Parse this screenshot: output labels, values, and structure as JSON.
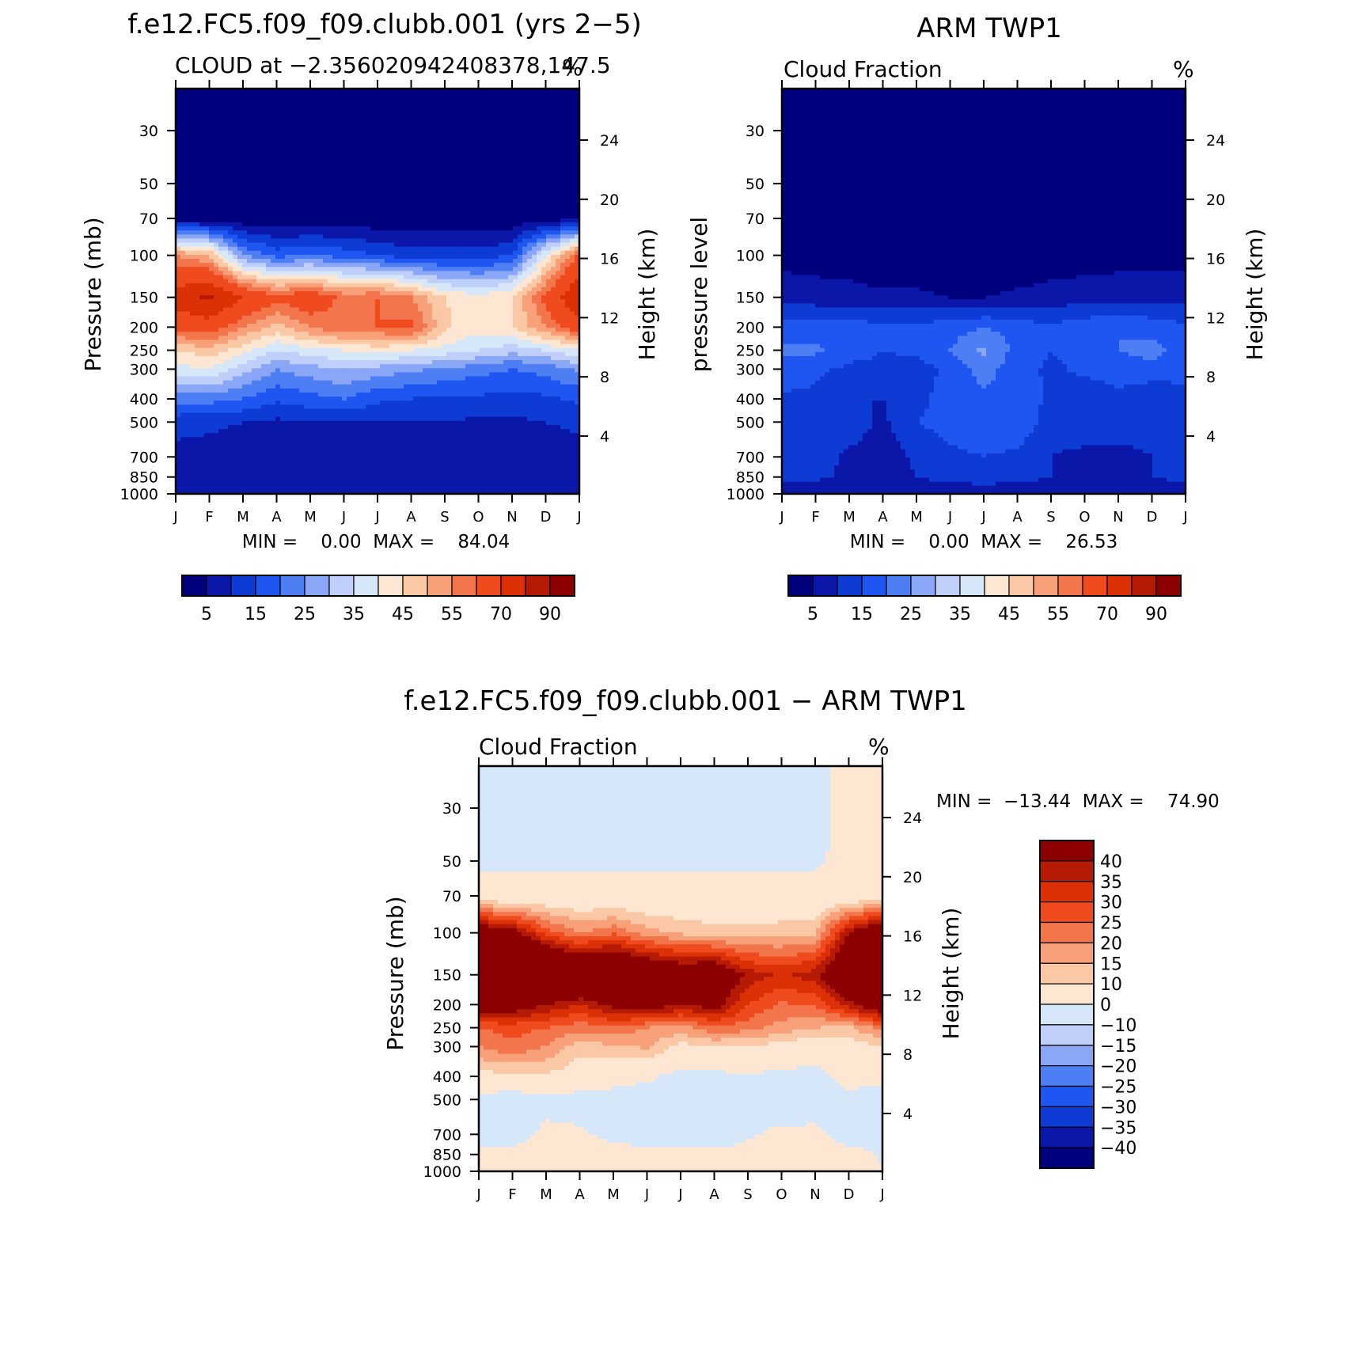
{
  "chart_data": [
    {
      "type": "heatmap",
      "title": "f.e12.FC5.f09_f09.clubb.001 (yrs 2−5)",
      "subtitle_left": "CLOUD at −2.356020942408378,147.5",
      "subtitle_right": "%",
      "ylabel": "Pressure (mb)",
      "y2label": "Height (km)",
      "x_ticks": [
        "J",
        "F",
        "M",
        "A",
        "M",
        "J",
        "J",
        "A",
        "S",
        "O",
        "N",
        "D",
        "J"
      ],
      "y_ticks": [
        "30",
        "50",
        "70",
        "100",
        "150",
        "200",
        "250",
        "300",
        "400",
        "500",
        "700",
        "850",
        "1000"
      ],
      "y2_ticks": [
        "24",
        "20",
        "16",
        "12",
        "8",
        "4"
      ],
      "minmax": "MIN =    0.00  MAX =    84.04",
      "min": 0.0,
      "max": 84.04,
      "colorbar_labels": [
        "5",
        "15",
        "25",
        "35",
        "45",
        "55",
        "70",
        "90"
      ],
      "colors": [
        "#00007f",
        "#0a17a8",
        "#0d3bd4",
        "#1f55f0",
        "#4d7ef4",
        "#8aa6f7",
        "#bfcff9",
        "#d7e7fa",
        "#fde7d3",
        "#fbc8a6",
        "#f7a07a",
        "#f3754c",
        "#ef4b1f",
        "#dc3007",
        "#b41a04",
        "#8c0000"
      ],
      "profile": [
        {
          "p": 30,
          "v": [
            0,
            0,
            0,
            0,
            0,
            0,
            0,
            0,
            0,
            0,
            0,
            0,
            0
          ]
        },
        {
          "p": 50,
          "v": [
            0,
            0,
            0,
            0,
            0,
            0,
            0,
            0,
            0,
            0,
            0,
            0,
            0
          ]
        },
        {
          "p": 70,
          "v": [
            2,
            2,
            1,
            1,
            1,
            1,
            1,
            1,
            1,
            1,
            1,
            2,
            3
          ]
        },
        {
          "p": 100,
          "v": [
            55,
            50,
            25,
            18,
            20,
            18,
            15,
            12,
            12,
            12,
            15,
            40,
            62
          ]
        },
        {
          "p": 150,
          "v": [
            75,
            82,
            70,
            62,
            66,
            58,
            60,
            55,
            45,
            42,
            45,
            62,
            80
          ]
        },
        {
          "p": 200,
          "v": [
            62,
            65,
            55,
            48,
            55,
            60,
            60,
            62,
            46,
            42,
            45,
            55,
            65
          ]
        },
        {
          "p": 250,
          "v": [
            45,
            48,
            42,
            35,
            38,
            40,
            42,
            40,
            38,
            35,
            32,
            35,
            40
          ]
        },
        {
          "p": 300,
          "v": [
            38,
            40,
            32,
            25,
            28,
            30,
            28,
            26,
            24,
            22,
            20,
            22,
            26
          ]
        },
        {
          "p": 400,
          "v": [
            22,
            22,
            20,
            16,
            18,
            20,
            16,
            15,
            14,
            14,
            13,
            14,
            16
          ]
        },
        {
          "p": 500,
          "v": [
            12,
            11,
            10,
            9,
            10,
            10,
            10,
            10,
            10,
            9,
            9,
            10,
            11
          ]
        },
        {
          "p": 700,
          "v": [
            8,
            8,
            7,
            6,
            7,
            8,
            8,
            8,
            7,
            6,
            6,
            7,
            8
          ]
        },
        {
          "p": 850,
          "v": [
            8,
            9,
            9,
            8,
            9,
            9,
            10,
            10,
            9,
            8,
            8,
            9,
            9
          ]
        },
        {
          "p": 1000,
          "v": [
            5,
            5,
            5,
            5,
            5,
            5,
            5,
            5,
            5,
            5,
            5,
            5,
            5
          ]
        }
      ]
    },
    {
      "type": "heatmap",
      "title": "ARM TWP1",
      "subtitle_left": "Cloud Fraction",
      "subtitle_right": "%",
      "ylabel": "pressure level",
      "y2label": "Height (km)",
      "x_ticks": [
        "J",
        "F",
        "M",
        "A",
        "M",
        "J",
        "J",
        "A",
        "S",
        "O",
        "N",
        "D",
        "J"
      ],
      "y_ticks": [
        "30",
        "50",
        "70",
        "100",
        "150",
        "200",
        "250",
        "300",
        "400",
        "500",
        "700",
        "850",
        "1000"
      ],
      "y2_ticks": [
        "24",
        "20",
        "16",
        "12",
        "8",
        "4"
      ],
      "minmax": "MIN =    0.00  MAX =    26.53",
      "min": 0.0,
      "max": 26.53,
      "colorbar_labels": [
        "5",
        "15",
        "25",
        "35",
        "45",
        "55",
        "70",
        "90"
      ],
      "colors": [
        "#00007f",
        "#0a17a8",
        "#0d3bd4",
        "#1f55f0",
        "#4d7ef4",
        "#8aa6f7",
        "#bfcff9",
        "#d7e7fa",
        "#fde7d3",
        "#fbc8a6",
        "#f7a07a",
        "#f3754c",
        "#ef4b1f",
        "#dc3007",
        "#b41a04",
        "#8c0000"
      ],
      "profile": [
        {
          "p": 30,
          "v": [
            0,
            0,
            0,
            0,
            0,
            0,
            0,
            0,
            0,
            0,
            0,
            0,
            0
          ]
        },
        {
          "p": 50,
          "v": [
            0,
            0,
            0,
            0,
            0,
            0,
            0,
            0,
            0,
            0,
            0,
            0,
            0
          ]
        },
        {
          "p": 70,
          "v": [
            0,
            0,
            0,
            0,
            0,
            0,
            0,
            0,
            0,
            0,
            0,
            0,
            0
          ]
        },
        {
          "p": 100,
          "v": [
            3,
            3,
            2,
            1,
            1,
            1,
            1,
            1,
            2,
            2,
            3,
            3,
            3
          ]
        },
        {
          "p": 150,
          "v": [
            8,
            7,
            7,
            6,
            6,
            5,
            5,
            6,
            7,
            8,
            8,
            8,
            8
          ]
        },
        {
          "p": 200,
          "v": [
            17,
            18,
            18,
            16,
            16,
            18,
            20,
            18,
            16,
            18,
            20,
            18,
            16
          ]
        },
        {
          "p": 250,
          "v": [
            21,
            21,
            17,
            15,
            16,
            20,
            26,
            18,
            15,
            17,
            20,
            22,
            18
          ]
        },
        {
          "p": 300,
          "v": [
            18,
            16,
            14,
            14,
            13,
            16,
            22,
            17,
            14,
            16,
            17,
            18,
            16
          ]
        },
        {
          "p": 400,
          "v": [
            14,
            14,
            10,
            10,
            13,
            18,
            19,
            18,
            14,
            12,
            14,
            11,
            14
          ]
        },
        {
          "p": 500,
          "v": [
            15,
            15,
            13,
            9,
            15,
            17,
            18,
            18,
            13,
            15,
            14,
            12,
            15
          ]
        },
        {
          "p": 700,
          "v": [
            13,
            12,
            9,
            7,
            11,
            14,
            15,
            14,
            10,
            8,
            8,
            10,
            12
          ]
        },
        {
          "p": 850,
          "v": [
            12,
            11,
            9,
            8,
            10,
            12,
            13,
            12,
            10,
            9,
            9,
            10,
            12
          ]
        },
        {
          "p": 1000,
          "v": [
            6,
            6,
            6,
            6,
            6,
            6,
            6,
            6,
            6,
            6,
            6,
            6,
            6
          ]
        }
      ]
    },
    {
      "type": "heatmap",
      "title": "f.e12.FC5.f09_f09.clubb.001 − ARM TWP1",
      "subtitle_left": "Cloud Fraction",
      "subtitle_right": "%",
      "ylabel": "Pressure (mb)",
      "y2label": "Height (km)",
      "x_ticks": [
        "J",
        "F",
        "M",
        "A",
        "M",
        "J",
        "J",
        "A",
        "S",
        "O",
        "N",
        "D",
        "J"
      ],
      "y_ticks": [
        "30",
        "50",
        "70",
        "100",
        "150",
        "200",
        "250",
        "300",
        "400",
        "500",
        "700",
        "850",
        "1000"
      ],
      "y2_ticks": [
        "24",
        "20",
        "16",
        "12",
        "8",
        "4"
      ],
      "minmax": "MIN =  −13.44  MAX =    74.90",
      "min": -13.44,
      "max": 74.9,
      "colorbar_labels": [
        "40",
        "35",
        "30",
        "25",
        "20",
        "15",
        "10",
        "0",
        "−10",
        "−15",
        "−20",
        "−25",
        "−30",
        "−35",
        "−40"
      ],
      "colors": [
        "#8c0000",
        "#b41a04",
        "#dc3007",
        "#ef4b1f",
        "#f3754c",
        "#f7a07a",
        "#fbc8a6",
        "#fde7d3",
        "#d7e7fa",
        "#bfcff9",
        "#8aa6f7",
        "#4d7ef4",
        "#1f55f0",
        "#0d3bd4",
        "#0a17a8",
        "#00007f"
      ],
      "profile": [
        {
          "p": 30,
          "v": [
            -2,
            -2,
            -2,
            -2,
            -2,
            -2,
            -2,
            -2,
            -2,
            -2,
            -2,
            2,
            2
          ]
        },
        {
          "p": 50,
          "v": [
            -1,
            -1,
            -1,
            -1,
            -1,
            -1,
            -1,
            -1,
            -1,
            -1,
            -1,
            2,
            2
          ]
        },
        {
          "p": 70,
          "v": [
            3,
            3,
            3,
            3,
            3,
            3,
            3,
            3,
            3,
            3,
            3,
            3,
            4
          ]
        },
        {
          "p": 100,
          "v": [
            50,
            44,
            28,
            20,
            24,
            17,
            14,
            12,
            12,
            13,
            14,
            40,
            55
          ]
        },
        {
          "p": 150,
          "v": [
            70,
            75,
            68,
            60,
            62,
            55,
            50,
            52,
            38,
            34,
            38,
            55,
            72
          ]
        },
        {
          "p": 200,
          "v": [
            48,
            46,
            40,
            35,
            42,
            46,
            40,
            44,
            30,
            24,
            26,
            38,
            50
          ]
        },
        {
          "p": 250,
          "v": [
            25,
            27,
            25,
            22,
            24,
            20,
            18,
            24,
            22,
            18,
            15,
            14,
            22
          ]
        },
        {
          "p": 300,
          "v": [
            20,
            24,
            20,
            12,
            14,
            16,
            8,
            10,
            10,
            7,
            5,
            6,
            10
          ]
        },
        {
          "p": 400,
          "v": [
            8,
            8,
            9,
            6,
            5,
            2,
            -3,
            -2,
            -1,
            -2,
            -3,
            3,
            2
          ]
        },
        {
          "p": 500,
          "v": [
            -3,
            -4,
            -3,
            -3,
            -5,
            -6,
            -7,
            -8,
            -4,
            -6,
            -5,
            -2,
            -4
          ]
        },
        {
          "p": 700,
          "v": [
            -5,
            -4,
            2,
            1,
            -2,
            -6,
            -7,
            -8,
            -1,
            2,
            2,
            -4,
            -4
          ]
        },
        {
          "p": 850,
          "v": [
            3,
            3,
            3,
            3,
            3,
            4,
            4,
            4,
            3,
            3,
            3,
            3,
            -1
          ]
        },
        {
          "p": 1000,
          "v": [
            1,
            1,
            1,
            1,
            1,
            1,
            1,
            1,
            1,
            1,
            1,
            1,
            1
          ]
        }
      ]
    }
  ]
}
